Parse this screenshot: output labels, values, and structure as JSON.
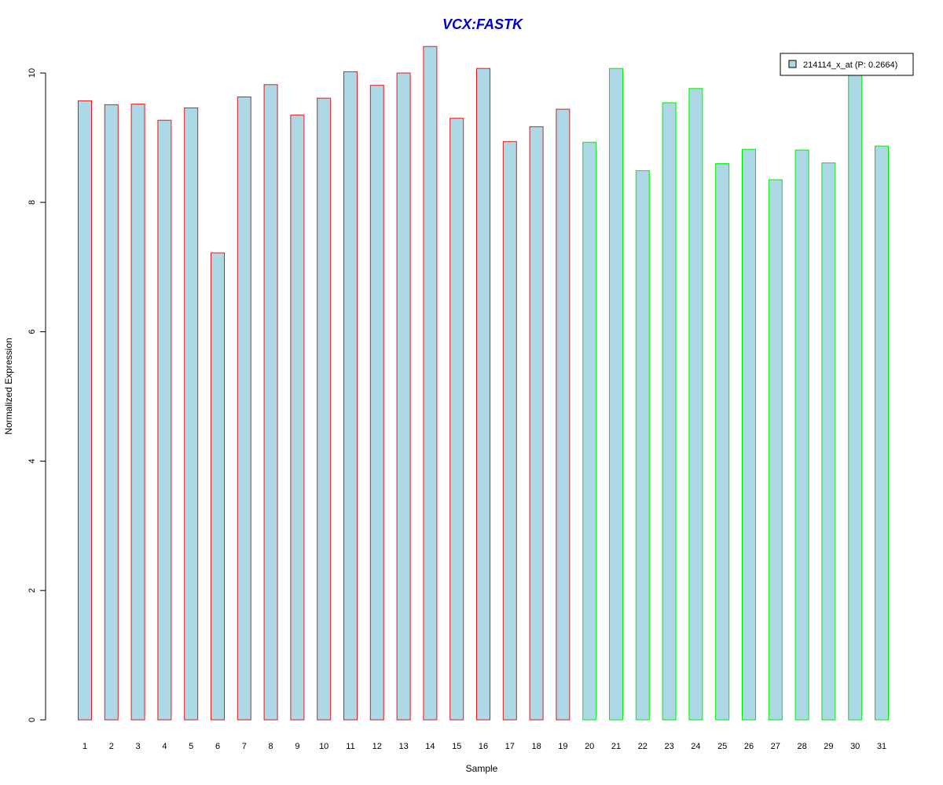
{
  "chart_data": {
    "type": "bar",
    "title": "VCX:FASTK",
    "xlabel": "Sample",
    "ylabel": "Normalized Expression",
    "ylim": [
      0,
      10.4
    ],
    "yticks": [
      0,
      2,
      4,
      6,
      8,
      10
    ],
    "grid": false,
    "legend_position": "top-right",
    "legend": [
      {
        "label": "214114_x_at (P: 0.2664)",
        "fill": "#add8e6"
      }
    ],
    "categories": [
      "1",
      "2",
      "3",
      "4",
      "5",
      "6",
      "7",
      "8",
      "9",
      "10",
      "11",
      "12",
      "13",
      "14",
      "15",
      "16",
      "17",
      "18",
      "19",
      "20",
      "21",
      "22",
      "23",
      "24",
      "25",
      "26",
      "27",
      "28",
      "29",
      "30",
      "31"
    ],
    "values": [
      9.57,
      9.51,
      9.52,
      9.27,
      9.46,
      7.22,
      9.63,
      9.82,
      9.35,
      9.61,
      10.02,
      9.81,
      10.0,
      10.41,
      9.3,
      10.07,
      8.94,
      9.17,
      9.44,
      8.93,
      10.07,
      8.49,
      9.54,
      9.76,
      8.6,
      8.82,
      8.35,
      8.81,
      8.61,
      9.98,
      8.87
    ],
    "bar_fill": "#add8e6",
    "group_colors": {
      "red": "#e31a1c",
      "green": "#00ee00"
    },
    "group_split_after": 19
  },
  "colors": {
    "title": "#0000cc",
    "axis": "#000000"
  }
}
